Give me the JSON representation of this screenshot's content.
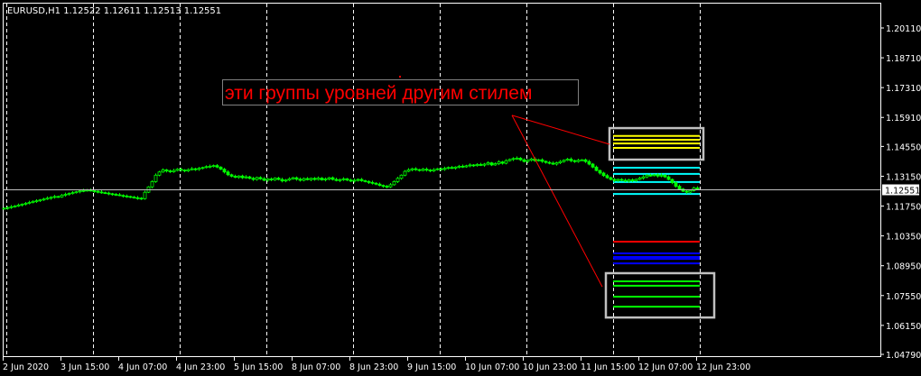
{
  "chart_data": {
    "type": "candlestick",
    "symbol_header": "EURUSD,H1  1.12522 1.12611 1.12513 1.12551",
    "timeframe": "H1",
    "first_bar_time": "2 Jun 23:00",
    "current_price": 1.12551,
    "current_price_label": "1.12551",
    "ylim": [
      1.0479,
      1.2011
    ],
    "y_ticks": [
      "1.20110",
      "1.18710",
      "1.17310",
      "1.15910",
      "1.14550",
      "1.13150",
      "1.11750",
      "1.10350",
      "1.08950",
      "1.07550",
      "1.06150",
      "1.04790"
    ],
    "x_ticks": [
      "2 Jun 2020",
      "3 Jun 15:00",
      "4 Jun 07:00",
      "4 Jun 23:00",
      "5 Jun 15:00",
      "8 Jun 07:00",
      "8 Jun 23:00",
      "9 Jun 15:00",
      "10 Jun 07:00",
      "10 Jun 23:00",
      "11 Jun 15:00",
      "12 Jun 07:00",
      "12 Jun 23:00"
    ],
    "grid": "vertical dashed, daily",
    "close": [
      1.1165,
      1.1168,
      1.1172,
      1.1175,
      1.118,
      1.1184,
      1.1188,
      1.1192,
      1.1197,
      1.12,
      1.1204,
      1.1208,
      1.1212,
      1.1216,
      1.122,
      1.1218,
      1.1226,
      1.123,
      1.1234,
      1.1238,
      1.1242,
      1.1246,
      1.1248,
      1.125,
      1.1247,
      1.1244,
      1.1241,
      1.1238,
      1.1236,
      1.1233,
      1.123,
      1.1228,
      1.1225,
      1.1222,
      1.122,
      1.1217,
      1.1214,
      1.1212,
      1.121,
      1.124,
      1.1265,
      1.129,
      1.132,
      1.1335,
      1.1345,
      1.134,
      1.1336,
      1.1342,
      1.1348,
      1.1344,
      1.134,
      1.1346,
      1.135,
      1.1347,
      1.1352,
      1.1356,
      1.136,
      1.1362,
      1.1365,
      1.1358,
      1.1348,
      1.1335,
      1.1322,
      1.1315,
      1.131,
      1.1316,
      1.1308,
      1.1312,
      1.1305,
      1.13,
      1.1309,
      1.1303,
      1.1296,
      1.1302,
      1.1298,
      1.1306,
      1.13,
      1.1293,
      1.1297,
      1.1303,
      1.1308,
      1.1301,
      1.1296,
      1.1304,
      1.1299,
      1.1305,
      1.13,
      1.1306,
      1.1298,
      1.1302,
      1.1308,
      1.13,
      1.1295,
      1.1299,
      1.1303,
      1.1297,
      1.1292,
      1.1296,
      1.13,
      1.1294,
      1.129,
      1.1286,
      1.1282,
      1.1278,
      1.1272,
      1.1268,
      1.1265,
      1.1275,
      1.129,
      1.1305,
      1.132,
      1.1338,
      1.1345,
      1.135,
      1.1346,
      1.1342,
      1.1348,
      1.1344,
      1.134,
      1.1346,
      1.135,
      1.1347,
      1.1352,
      1.1356,
      1.1353,
      1.1358,
      1.1362,
      1.1359,
      1.1364,
      1.1368,
      1.1365,
      1.137,
      1.1367,
      1.1372,
      1.1378,
      1.1368,
      1.1374,
      1.1382,
      1.1376,
      1.1388,
      1.1394,
      1.1398,
      1.14,
      1.1392,
      1.1384,
      1.139,
      1.1396,
      1.1388,
      1.1392,
      1.1385,
      1.138,
      1.1376,
      1.1372,
      1.1378,
      1.1384,
      1.139,
      1.1395,
      1.1388,
      1.1384,
      1.139,
      1.1392,
      1.1384,
      1.1372,
      1.1358,
      1.1342,
      1.133,
      1.1318,
      1.1308,
      1.13,
      1.1295,
      1.13,
      1.1296,
      1.1292,
      1.1298,
      1.1294,
      1.13,
      1.1306,
      1.1312,
      1.132,
      1.1318,
      1.1322,
      1.1316,
      1.132,
      1.1312,
      1.13,
      1.1285,
      1.1268,
      1.1255,
      1.1245,
      1.124,
      1.1248,
      1.126,
      1.1255
    ],
    "levels": {
      "from": "12 Jun 00:00",
      "to": "13 Jun 00:00",
      "groups": [
        {
          "color": "#ffff00",
          "prices": [
            1.1504,
            1.1486,
            1.1469,
            1.1448
          ]
        },
        {
          "color": "#00ffff",
          "prices": [
            1.1355,
            1.1326,
            1.1288,
            1.1232
          ]
        },
        {
          "color": "#ff0000",
          "prices": [
            1.1008
          ]
        },
        {
          "color": "#0000ff",
          "prices": [
            1.0953,
            1.0936,
            1.0927,
            1.0906
          ]
        },
        {
          "color": "#00ff00",
          "prices": [
            1.0822,
            1.0801,
            1.075,
            1.0703
          ]
        }
      ]
    },
    "boxes": [
      {
        "from": "11 Jun 23:00",
        "to": "13 Jun 01:00",
        "top": 1.1541,
        "bottom": 1.1393,
        "color": "#c0c0c0"
      },
      {
        "from": "11 Jun 22:00",
        "to": "13 Jun 04:00",
        "top": 1.086,
        "bottom": 1.0652,
        "color": "#c0c0c0"
      }
    ],
    "trendlines": [
      {
        "from": {
          "time": "10 Jun 20:00",
          "price": 1.1601
        },
        "to": {
          "time": "11 Jun 23:00",
          "price": 1.1465
        },
        "color": "#ff0000"
      },
      {
        "from": {
          "time": "10 Jun 20:00",
          "price": 1.1601
        },
        "to": {
          "time": "11 Jun 21:00",
          "price": 1.0796
        },
        "color": "#ff0000"
      }
    ],
    "annotation": {
      "text": "эти группы уровней другим стилем",
      "color": "#ff0000"
    },
    "colors": {
      "background": "#000000",
      "candle": "#00ff00",
      "grid": "#ffffff",
      "price_line": "#c0c0c0"
    }
  }
}
